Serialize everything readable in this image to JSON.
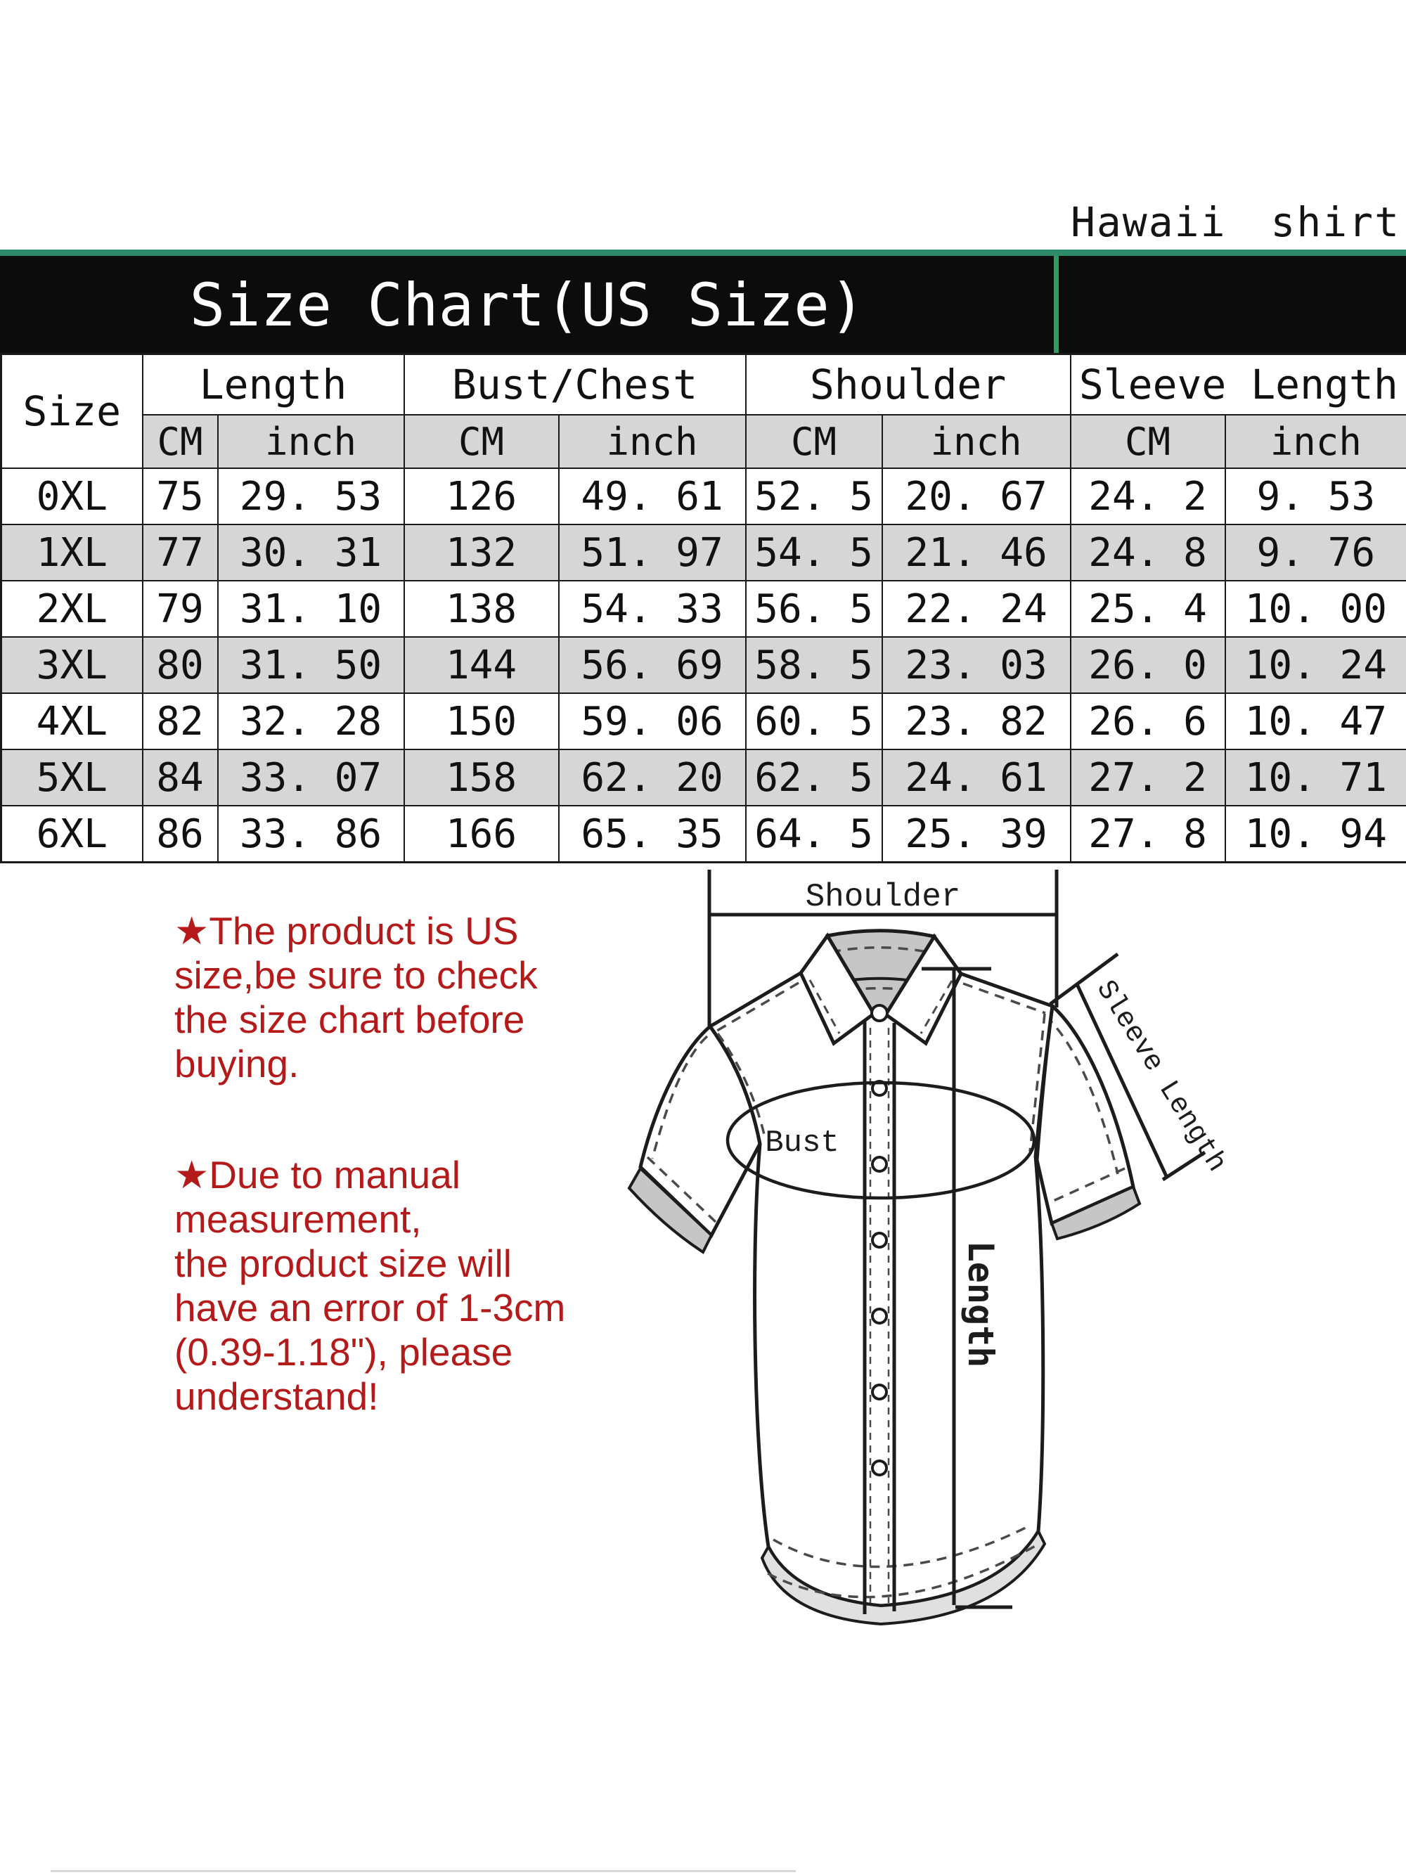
{
  "product_label": "Hawaii shirt",
  "banner": {
    "title": "Size Chart(US Size)"
  },
  "table": {
    "size_header": "Size",
    "group_headers": [
      "Length",
      "Bust/Chest",
      "Shoulder",
      "Sleeve Length"
    ],
    "unit_headers": [
      "CM",
      "inch",
      "CM",
      "inch",
      "CM",
      "inch",
      "CM",
      "inch"
    ],
    "rows": [
      {
        "size": "0XL",
        "values": [
          "75",
          "29. 53",
          "126",
          "49. 61",
          "52. 5",
          "20. 67",
          "24. 2",
          "9. 53"
        ]
      },
      {
        "size": "1XL",
        "values": [
          "77",
          "30. 31",
          "132",
          "51. 97",
          "54. 5",
          "21. 46",
          "24. 8",
          "9. 76"
        ]
      },
      {
        "size": "2XL",
        "values": [
          "79",
          "31. 10",
          "138",
          "54. 33",
          "56. 5",
          "22. 24",
          "25. 4",
          "10. 00"
        ]
      },
      {
        "size": "3XL",
        "values": [
          "80",
          "31. 50",
          "144",
          "56. 69",
          "58. 5",
          "23. 03",
          "26. 0",
          "10. 24"
        ]
      },
      {
        "size": "4XL",
        "values": [
          "82",
          "32. 28",
          "150",
          "59. 06",
          "60. 5",
          "23. 82",
          "26. 6",
          "10. 47"
        ]
      },
      {
        "size": "5XL",
        "values": [
          "84",
          "33. 07",
          "158",
          "62. 20",
          "62. 5",
          "24. 61",
          "27. 2",
          "10. 71"
        ]
      },
      {
        "size": "6XL",
        "values": [
          "86",
          "33. 86",
          "166",
          "65. 35",
          "64. 5",
          "25. 39",
          "27. 8",
          "10. 94"
        ]
      }
    ]
  },
  "notes": {
    "note1_lines": [
      "★The product is US",
      "size,be sure to check",
      "the size chart before",
      "buying."
    ],
    "note2_lines": [
      "★Due to manual",
      "measurement,",
      "the product size will",
      "have an error of 1-3cm",
      "(0.39-1.18\"), please",
      "understand!"
    ]
  },
  "diagram": {
    "shoulder_label": "Shoulder",
    "bust_label": "Bust",
    "length_label": "Length",
    "sleeve_length_label": "Sleeve Length"
  },
  "colors": {
    "banner_bg": "#0c0c0c",
    "accent_green_line": "#2e8b6a",
    "divider_green": "#28a060",
    "row_alt_gray": "#d6d6d6",
    "note_red": "#b51a1a"
  }
}
